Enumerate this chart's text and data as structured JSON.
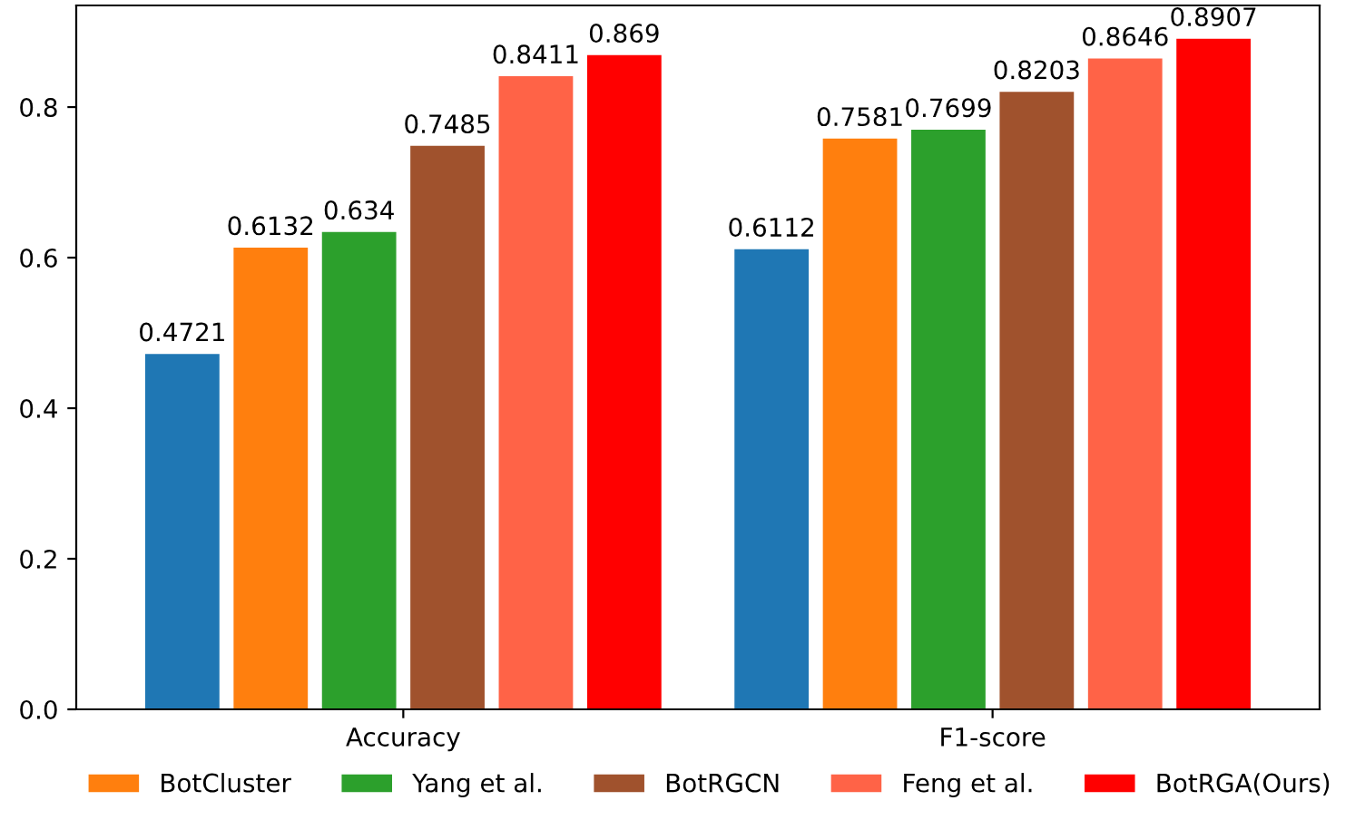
{
  "chart_data": {
    "type": "bar",
    "categories": [
      "Accuracy",
      "F1-score"
    ],
    "series": [
      {
        "color": "#1f77b4",
        "values": [
          0.4721,
          0.6112
        ]
      },
      {
        "name": "BotCluster",
        "color": "#ff7f0e",
        "values": [
          0.6132,
          0.7581
        ]
      },
      {
        "name": "Yang et al.",
        "color": "#2ca02c",
        "values": [
          0.634,
          0.7699
        ]
      },
      {
        "name": "BotRGCN",
        "color": "#a0522d",
        "values": [
          0.7485,
          0.8203
        ]
      },
      {
        "name": "Feng et al.",
        "color": "#ff6347",
        "values": [
          0.8411,
          0.8646
        ]
      },
      {
        "name": "BotRGA(Ours)",
        "color": "#ff0000",
        "values": [
          0.869,
          0.8907
        ]
      }
    ],
    "ylim": [
      0,
      0.935
    ],
    "yticks": [
      {
        "value": 0,
        "label": "0.0"
      },
      0.2,
      0.4,
      0.6,
      0.8
    ],
    "data_labels": true,
    "legend": "bottom",
    "grid": false
  }
}
